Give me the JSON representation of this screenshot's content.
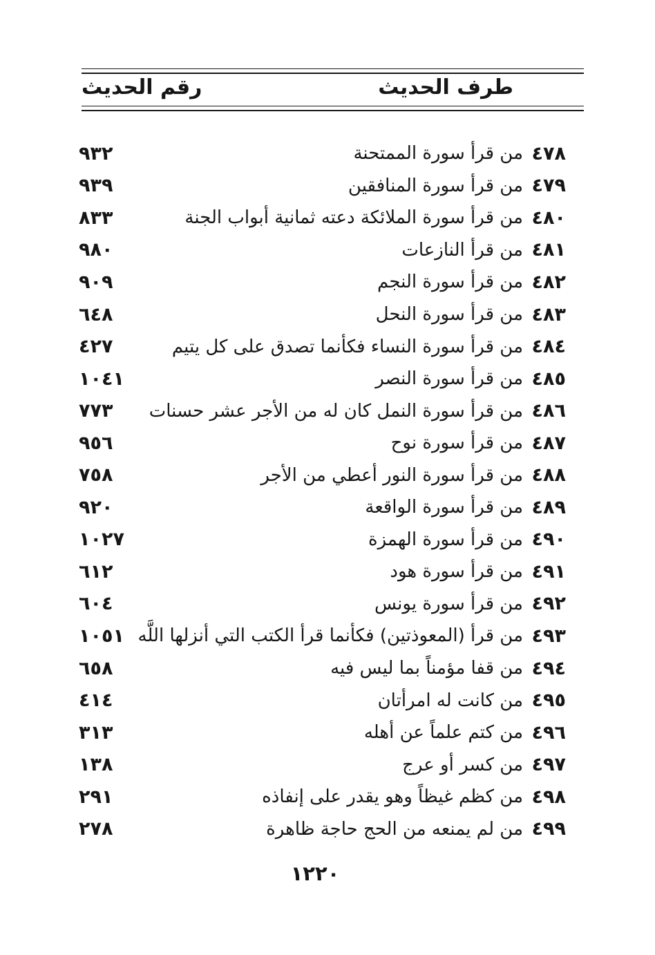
{
  "document": {
    "header": {
      "topic_column_label": "طرف الحديث",
      "number_column_label": "رقم الحديث"
    },
    "entries": [
      {
        "serial": "٤٧٨",
        "text": "من قرأ سورة الممتحنة",
        "number": "٩٣٢"
      },
      {
        "serial": "٤٧٩",
        "text": "من قرأ سورة المنافقين",
        "number": "٩٣٩"
      },
      {
        "serial": "٤٨٠",
        "text": "من قرأ سورة الملائكة دعته ثمانية أبواب الجنة",
        "number": "٨٣٣"
      },
      {
        "serial": "٤٨١",
        "text": "من قرأ النازعات",
        "number": "٩٨٠"
      },
      {
        "serial": "٤٨٢",
        "text": "من قرأ سورة النجم",
        "number": "٩٠٩"
      },
      {
        "serial": "٤٨٣",
        "text": "من قرأ سورة النحل",
        "number": "٦٤٨"
      },
      {
        "serial": "٤٨٤",
        "text": "من قرأ سورة النساء فكأنما تصدق على كل يتيم",
        "number": "٤٢٧"
      },
      {
        "serial": "٤٨٥",
        "text": "من قرأ سورة النصر",
        "number": "١٠٤١"
      },
      {
        "serial": "٤٨٦",
        "text": "من قرأ سورة النمل كان له من الأجر عشر حسنات",
        "number": "٧٧٣"
      },
      {
        "serial": "٤٨٧",
        "text": "من قرأ سورة نوح",
        "number": "٩٥٦"
      },
      {
        "serial": "٤٨٨",
        "text": "من قرأ سورة النور أعطي من الأجر",
        "number": "٧٥٨"
      },
      {
        "serial": "٤٨٩",
        "text": "من قرأ سورة الواقعة",
        "number": "٩٢٠"
      },
      {
        "serial": "٤٩٠",
        "text": "من قرأ سورة الهمزة",
        "number": "١٠٢٧"
      },
      {
        "serial": "٤٩١",
        "text": "من قرأ سورة هود",
        "number": "٦١٢"
      },
      {
        "serial": "٤٩٢",
        "text": "من قرأ سورة يونس",
        "number": "٦٠٤"
      },
      {
        "serial": "٤٩٣",
        "text": "من قرأ (المعوذتين) فكأنما قرأ الكتب التي أنزلها اللَّه",
        "number": "١٠٥١"
      },
      {
        "serial": "٤٩٤",
        "text": "من قفا مؤمناً بما ليس فيه",
        "number": "٦٥٨"
      },
      {
        "serial": "٤٩٥",
        "text": "من كانت له امرأتان",
        "number": "٤١٤"
      },
      {
        "serial": "٤٩٦",
        "text": "من كتم علماً عن أهله",
        "number": "٣١٣"
      },
      {
        "serial": "٤٩٧",
        "text": "من كسر أو عرج",
        "number": "١٣٨"
      },
      {
        "serial": "٤٩٨",
        "text": "من كظم غيظاً وهو يقدر على إنفاذه",
        "number": "٢٩١"
      },
      {
        "serial": "٤٩٩",
        "text": "من لم يمنعه من الحج حاجة ظاهرة",
        "number": "٢٧٨"
      }
    ],
    "page_number": "١٢٢٠"
  },
  "colors": {
    "ink": "#161616",
    "paper": "#ffffff"
  }
}
